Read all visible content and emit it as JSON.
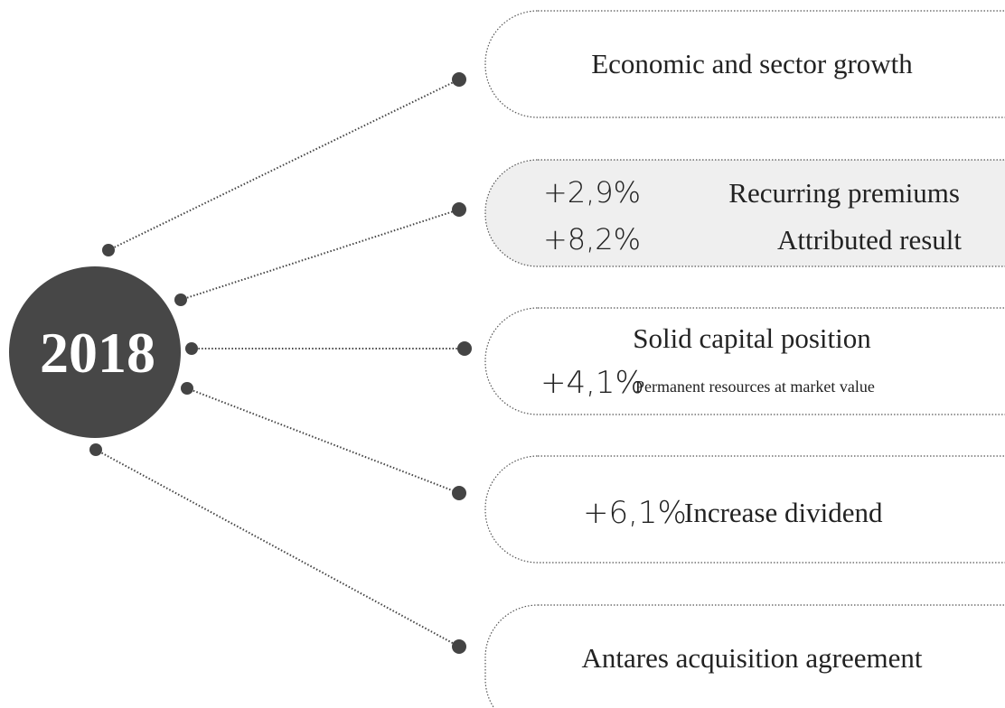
{
  "year": "2018",
  "items": [
    {
      "label": "Economic and sector growth"
    },
    {
      "rows": [
        {
          "value": "+2,9%",
          "label": "Recurring premiums"
        },
        {
          "value": "+8,2%",
          "label": "Attributed result"
        }
      ]
    },
    {
      "label": "Solid capital position",
      "value": "+4,1%",
      "note": "Permanent resources at market value"
    },
    {
      "value": "+6,1%",
      "label": "Increase dividend"
    },
    {
      "label": "Antares acquisition agreement"
    }
  ]
}
